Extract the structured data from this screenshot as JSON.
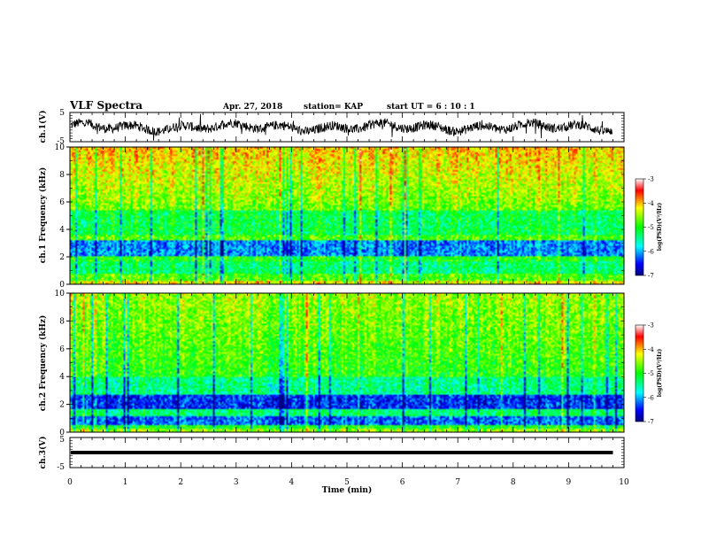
{
  "header": {
    "title": "VLF Spectra",
    "date": "Apr. 27, 2018",
    "station": "station= KAP",
    "start_ut": "start  UT =  6 : 10 : 1"
  },
  "chart_data": [
    {
      "type": "line",
      "name": "ch1-waveform",
      "ylabel": "ch.1(V)",
      "ylim": [
        -5,
        5
      ],
      "yticks": [
        "5",
        "-5"
      ],
      "xlim": [
        0,
        10
      ],
      "x_data_extent": [
        0,
        9.8
      ]
    },
    {
      "type": "heatmap",
      "name": "ch1-spectrogram",
      "ylabel": "ch.1 Frequency (kHz)",
      "ylim": [
        0,
        10
      ],
      "yticks": [
        "0",
        "2",
        "4",
        "6",
        "8",
        "10"
      ],
      "xlim": [
        0,
        10
      ],
      "colorbar": {
        "label": "log(PSD)(V²/Hz)",
        "range": [
          -7,
          -3
        ],
        "ticks": [
          "-3",
          "-4",
          "-5",
          "-6",
          "-7"
        ]
      }
    },
    {
      "type": "heatmap",
      "name": "ch2-spectrogram",
      "ylabel": "ch.2 Frequency (kHz)",
      "ylim": [
        0,
        10
      ],
      "yticks": [
        "0",
        "2",
        "4",
        "6",
        "8",
        "10"
      ],
      "xlim": [
        0,
        10
      ],
      "colorbar": {
        "label": "log(PSD)(V²/Hz)",
        "range": [
          -7,
          -3
        ],
        "ticks": [
          "-3",
          "-4",
          "-5",
          "-6",
          "-7"
        ]
      }
    },
    {
      "type": "line",
      "name": "ch3-waveform",
      "ylabel": "ch.3(V)",
      "ylim": [
        -5,
        5
      ],
      "yticks": [
        "5",
        "-5"
      ],
      "xlim": [
        0,
        10
      ],
      "y_constant": 0
    }
  ],
  "xaxis": {
    "label": "Time (min)",
    "ticks": [
      "0",
      "1",
      "2",
      "3",
      "4",
      "5",
      "6",
      "7",
      "8",
      "9",
      "10"
    ]
  }
}
